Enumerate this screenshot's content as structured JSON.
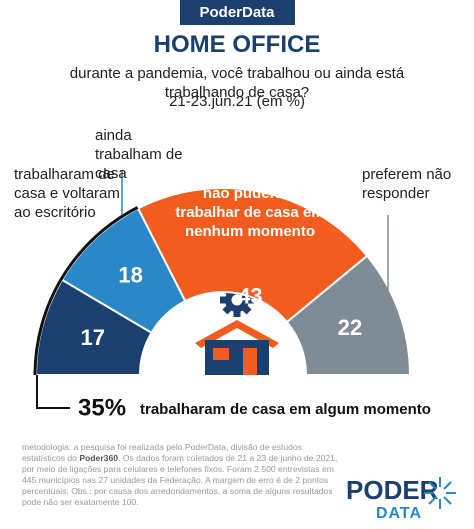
{
  "brand": "PoderData",
  "chart_data": {
    "type": "half-donut",
    "title": "HOME OFFICE",
    "subtitle": "durante a pandemia, você trabalhou ou ainda está trabalhando de casa?",
    "date": "21-23.jun.21 (em %)",
    "categories": [
      "trabalharam de casa e voltaram ao escritório",
      "ainda trabalham de casa",
      "não puderam trabalhar de casa em nenhum momento",
      "preferem não responder"
    ],
    "values": [
      17,
      18,
      43,
      22
    ],
    "colors": [
      "#1b3f6e",
      "#2a87c8",
      "#f25c1e",
      "#7f8b95"
    ],
    "summary_value": "35%",
    "summary_text": "trabalharam de casa em algum momento"
  },
  "methodology": [
    "metodologia: a pesquisa foi realizada pelo PoderData, divisão de estudos estatísticos do ",
    "Poder360",
    ". Os dados foram coletados de 21 a 23 de junho de 2021, por meio de ligações para celulares e telefones fixos. Foram 2.500 entrevistas em 445 municípios nas 27 unidades da Federação. A margem de erro é de 2 pontos percentuais. Obs.: por causa dos arredondamentos, a soma de alguns resultados pode não ser exatamente 100."
  ],
  "logo": [
    "PODER",
    "DATA"
  ]
}
